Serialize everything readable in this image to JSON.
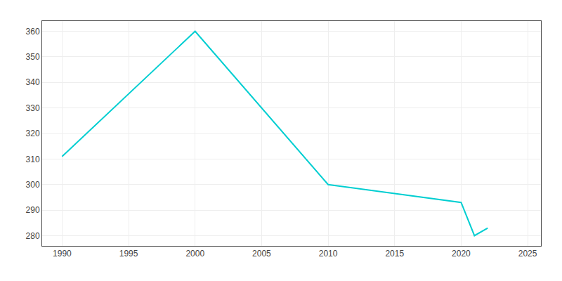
{
  "chart_data": {
    "type": "line",
    "x": [
      1990,
      2000,
      2010,
      2020,
      2021,
      2022
    ],
    "values": [
      311,
      360,
      300,
      293,
      280,
      283
    ],
    "color": "#00CED1",
    "xlim": [
      1988.5,
      2026
    ],
    "ylim": [
      276,
      364
    ],
    "xticks": [
      1990,
      1995,
      2000,
      2005,
      2010,
      2015,
      2020,
      2025
    ],
    "yticks": [
      280,
      290,
      300,
      310,
      320,
      330,
      340,
      350,
      360
    ],
    "grid": true
  }
}
